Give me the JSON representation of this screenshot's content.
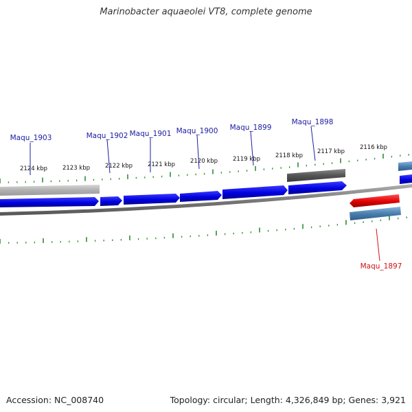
{
  "title": "Marinobacter aquaeolei VT8, complete genome",
  "footer": {
    "accession": "Accession: NC_008740",
    "summary": "Topology: circular; Length: 4,326,849 bp; Genes: 3,921"
  },
  "colors": {
    "forward_cds": "#1010e0",
    "forward_label": "#1a1aa0",
    "reverse_highlight": "#e01010",
    "reverse_label": "#cc1111",
    "tick": "#2e8b2e",
    "backbone": "#7a7a7a",
    "gene_gray": "#606060",
    "gene_lightgray": "#b8b8b8",
    "gene_steel": "#4a7fb0"
  },
  "scale": {
    "unit": "kbp",
    "outer_ticks": [
      "2124 kbp",
      "2123 kbp",
      "2122 kbp",
      "2121 kbp",
      "2120 kbp",
      "2119 kbp",
      "2118 kbp",
      "2117 kbp",
      "2116 kbp"
    ]
  },
  "genes": [
    {
      "label": "Maqu_1903",
      "strand": "forward"
    },
    {
      "label": "Maqu_1902",
      "strand": "forward"
    },
    {
      "label": "Maqu_1901",
      "strand": "forward"
    },
    {
      "label": "Maqu_1900",
      "strand": "forward"
    },
    {
      "label": "Maqu_1899",
      "strand": "forward"
    },
    {
      "label": "Maqu_1898",
      "strand": "forward"
    },
    {
      "label": "Maqu_1897",
      "strand": "reverse"
    }
  ]
}
